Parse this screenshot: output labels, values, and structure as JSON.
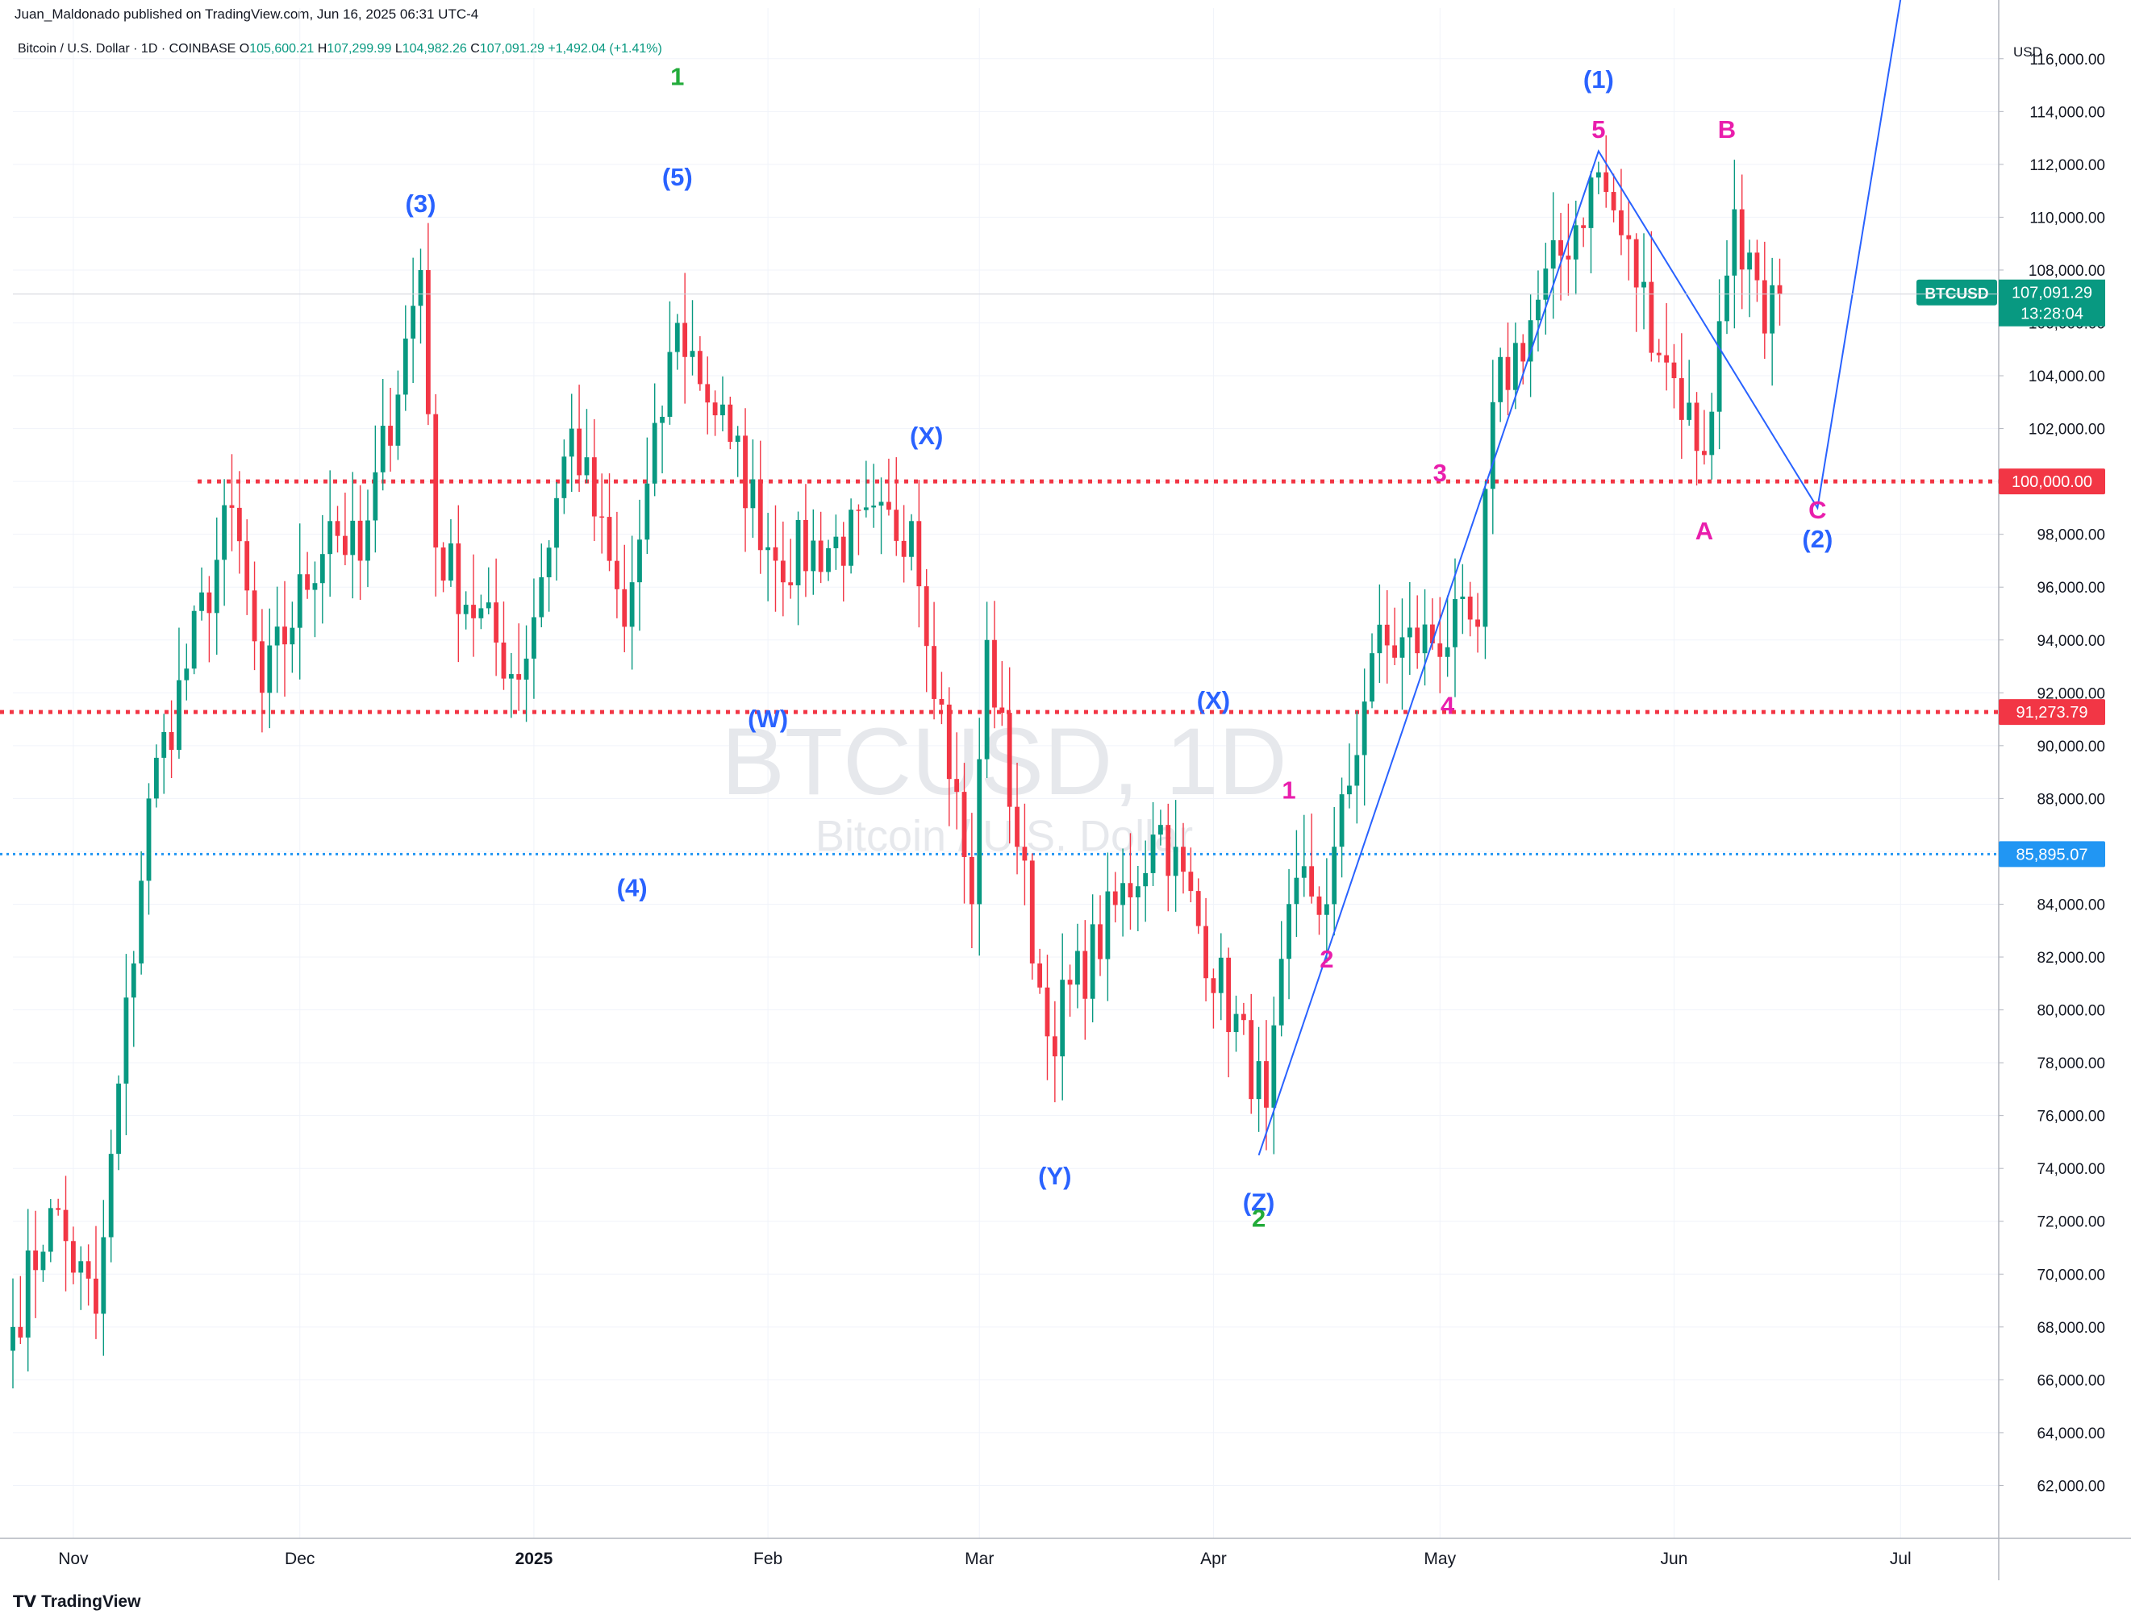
{
  "header": {
    "publisher": "Juan_Maldonado published on TradingView.com, Jun 16, 2025 06:31 UTC-4",
    "symbol": "Bitcoin / U.S. Dollar · 1D · COINBASE",
    "open_label": "O",
    "open": "105,600.21",
    "high_label": "H",
    "high": "107,299.99",
    "low_label": "L",
    "low": "104,982.26",
    "close_label": "C",
    "close": "107,091.29",
    "change": "+1,492.04 (+1.41%)"
  },
  "watermark": {
    "ticker": "BTCUSD, 1D",
    "name": "Bitcoin / U.S. Dollar"
  },
  "footer": {
    "brand": "TradingView"
  },
  "colors": {
    "up": "#089981",
    "down": "#f23645",
    "wave_blue": "#2962ff",
    "pink": "#e91eac",
    "green": "#22ab3a",
    "red_line": "#f23645",
    "blue_dotted": "#2196f3"
  },
  "chart_data": {
    "type": "candlestick",
    "currency_label": "USD",
    "ylim": [
      60000,
      117000
    ],
    "x_range": [
      "2024-10-24",
      "2025-07-14"
    ],
    "y_ticks": [
      62000,
      64000,
      66000,
      68000,
      70000,
      72000,
      74000,
      76000,
      78000,
      80000,
      82000,
      84000,
      86000,
      88000,
      90000,
      92000,
      94000,
      96000,
      98000,
      100000,
      102000,
      104000,
      106000,
      108000,
      110000,
      112000,
      114000,
      116000
    ],
    "x_ticks": [
      {
        "date": "2024-11-01",
        "label": "Nov"
      },
      {
        "date": "2024-12-01",
        "label": "Dec"
      },
      {
        "date": "2025-01-01",
        "label": "2025"
      },
      {
        "date": "2025-02-01",
        "label": "Feb"
      },
      {
        "date": "2025-03-01",
        "label": "Mar"
      },
      {
        "date": "2025-04-01",
        "label": "Apr"
      },
      {
        "date": "2025-05-01",
        "label": "May"
      },
      {
        "date": "2025-06-01",
        "label": "Jun"
      },
      {
        "date": "2025-07-01",
        "label": "Jul"
      }
    ],
    "key_points": [
      {
        "date": "2024-10-24",
        "close": 68000
      },
      {
        "date": "2024-10-29",
        "close": 72500
      },
      {
        "date": "2024-11-04",
        "close": 68500
      },
      {
        "date": "2024-11-11",
        "close": 88000
      },
      {
        "date": "2024-11-22",
        "close": 99000
      },
      {
        "date": "2024-11-26",
        "close": 92000
      },
      {
        "date": "2024-12-05",
        "close": 98500
      },
      {
        "date": "2024-12-09",
        "close": 97000
      },
      {
        "date": "2024-12-17",
        "close": 108000
      },
      {
        "date": "2024-12-19",
        "close": 97500
      },
      {
        "date": "2024-12-30",
        "close": 92500
      },
      {
        "date": "2025-01-06",
        "close": 102000
      },
      {
        "date": "2025-01-13",
        "close": 94500
      },
      {
        "date": "2025-01-20",
        "close": 106000
      },
      {
        "date": "2025-01-27",
        "close": 101500
      },
      {
        "date": "2025-02-02",
        "close": 97000
      },
      {
        "date": "2025-02-20",
        "close": 98500
      },
      {
        "date": "2025-02-28",
        "close": 84000
      },
      {
        "date": "2025-03-02",
        "close": 94000
      },
      {
        "date": "2025-03-10",
        "close": 79000
      },
      {
        "date": "2025-03-25",
        "close": 87000
      },
      {
        "date": "2025-04-08",
        "close": 76300
      },
      {
        "date": "2025-04-12",
        "close": 85000
      },
      {
        "date": "2025-04-16",
        "close": 84000
      },
      {
        "date": "2025-04-22",
        "close": 93500
      },
      {
        "date": "2025-05-06",
        "close": 94500
      },
      {
        "date": "2025-05-08",
        "close": 103000
      },
      {
        "date": "2025-05-22",
        "close": 111700
      },
      {
        "date": "2025-05-31",
        "close": 104500
      },
      {
        "date": "2025-06-05",
        "close": 101000
      },
      {
        "date": "2025-06-09",
        "close": 110300
      },
      {
        "date": "2025-06-13",
        "close": 105600
      },
      {
        "date": "2025-06-15",
        "close": 107091.29
      }
    ],
    "horizontal_lines": [
      {
        "price": 100000,
        "label": "100,000.00",
        "style": "red-dotted"
      },
      {
        "price": 91273.79,
        "label": "91,273.79",
        "style": "red-dotted"
      },
      {
        "price": 85895.07,
        "label": "85,895.07",
        "style": "blue-dotted"
      }
    ],
    "last_price": {
      "symbol": "BTCUSD",
      "price": "107,091.29",
      "countdown": "13:28:04"
    },
    "wave_path": [
      {
        "date": "2025-04-07",
        "price": 74500
      },
      {
        "date": "2025-05-22",
        "price": 112500
      },
      {
        "date": "2025-06-20",
        "price": 99000
      },
      {
        "date": "2025-07-02",
        "price": 120000
      }
    ],
    "annotations": [
      {
        "text": "1",
        "date": "2025-01-20",
        "price": 115000,
        "color": "green"
      },
      {
        "text": "(3)",
        "date": "2024-12-17",
        "price": 110200,
        "color": "blue"
      },
      {
        "text": "(5)",
        "date": "2025-01-20",
        "price": 111200,
        "color": "blue"
      },
      {
        "text": "(X)",
        "date": "2025-02-22",
        "price": 101400,
        "color": "blue"
      },
      {
        "text": "(W)",
        "date": "2025-02-01",
        "price": 90700,
        "color": "blue"
      },
      {
        "text": "(4)",
        "date": "2025-01-14",
        "price": 84300,
        "color": "blue"
      },
      {
        "text": "(X)",
        "date": "2025-04-01",
        "price": 91400,
        "color": "blue"
      },
      {
        "text": "(Y)",
        "date": "2025-03-11",
        "price": 73400,
        "color": "blue"
      },
      {
        "text": "(Z)",
        "date": "2025-04-07",
        "price": 72400,
        "color": "blue"
      },
      {
        "text": "2",
        "date": "2025-04-07",
        "price": 71800,
        "color": "green"
      },
      {
        "text": "1",
        "date": "2025-04-11",
        "price": 88000,
        "color": "pink"
      },
      {
        "text": "2",
        "date": "2025-04-16",
        "price": 81600,
        "color": "pink"
      },
      {
        "text": "3",
        "date": "2025-05-01",
        "price": 100000,
        "color": "pink"
      },
      {
        "text": "4",
        "date": "2025-05-02",
        "price": 91200,
        "color": "pink"
      },
      {
        "text": "(1)",
        "date": "2025-05-22",
        "price": 114900,
        "color": "blue"
      },
      {
        "text": "5",
        "date": "2025-05-22",
        "price": 113000,
        "color": "pink"
      },
      {
        "text": "B",
        "date": "2025-06-08",
        "price": 113000,
        "color": "pink"
      },
      {
        "text": "A",
        "date": "2025-06-05",
        "price": 97800,
        "color": "pink"
      },
      {
        "text": "C",
        "date": "2025-06-20",
        "price": 98600,
        "color": "pink"
      },
      {
        "text": "(2)",
        "date": "2025-06-20",
        "price": 97500,
        "color": "blue"
      }
    ]
  }
}
